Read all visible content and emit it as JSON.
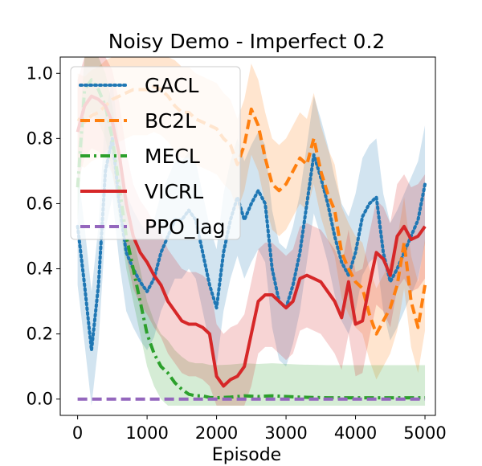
{
  "chart_data": {
    "type": "line",
    "title": "Noisy Demo - Imperfect 0.2",
    "xlabel": "Episode",
    "ylabel": "",
    "xlim": [
      -250,
      5150
    ],
    "ylim": [
      -0.05,
      1.05
    ],
    "x_ticks": [
      0,
      1000,
      2000,
      3000,
      4000,
      5000
    ],
    "x_tick_labels": [
      "0",
      "1000",
      "2000",
      "3000",
      "4000",
      "5000"
    ],
    "y_ticks": [
      0.0,
      0.2,
      0.4,
      0.6,
      0.8,
      1.0
    ],
    "y_tick_labels": [
      "0.0",
      "0.2",
      "0.4",
      "0.6",
      "0.8",
      "1.0"
    ],
    "legend_position": "top-left",
    "series": [
      {
        "name": "GACL",
        "color": "#1f77b4",
        "style": "dotted",
        "x": [
          0,
          100,
          200,
          300,
          400,
          500,
          600,
          700,
          800,
          900,
          1000,
          1100,
          1200,
          1300,
          1400,
          1500,
          1600,
          1700,
          1800,
          1900,
          2000,
          2100,
          2200,
          2300,
          2400,
          2500,
          2600,
          2700,
          2800,
          2900,
          3000,
          3100,
          3200,
          3300,
          3400,
          3500,
          3600,
          3700,
          3800,
          3900,
          4000,
          4100,
          4200,
          4300,
          4400,
          4500,
          4600,
          4700,
          4800,
          4900,
          5000
        ],
        "y": [
          0.53,
          0.35,
          0.15,
          0.35,
          0.7,
          0.8,
          0.6,
          0.45,
          0.4,
          0.36,
          0.33,
          0.37,
          0.45,
          0.5,
          0.55,
          0.55,
          0.58,
          0.55,
          0.45,
          0.35,
          0.28,
          0.45,
          0.55,
          0.62,
          0.55,
          0.6,
          0.64,
          0.6,
          0.4,
          0.3,
          0.28,
          0.35,
          0.45,
          0.6,
          0.75,
          0.68,
          0.6,
          0.5,
          0.42,
          0.38,
          0.45,
          0.56,
          0.6,
          0.62,
          0.45,
          0.36,
          0.4,
          0.45,
          0.5,
          0.55,
          0.66
        ]
      },
      {
        "name": "BC2L",
        "color": "#ff7f0e",
        "style": "dashed",
        "x": [
          0,
          100,
          200,
          300,
          400,
          500,
          600,
          700,
          800,
          900,
          1000,
          1100,
          1200,
          1300,
          1400,
          1500,
          1600,
          1700,
          1800,
          1900,
          2000,
          2100,
          2200,
          2300,
          2400,
          2500,
          2600,
          2700,
          2800,
          2900,
          3000,
          3100,
          3200,
          3300,
          3400,
          3500,
          3600,
          3700,
          3800,
          3900,
          4000,
          4100,
          4200,
          4300,
          4400,
          4500,
          4600,
          4700,
          4800,
          4900,
          5000
        ],
        "y": [
          0.86,
          0.85,
          0.87,
          0.88,
          0.9,
          0.92,
          0.93,
          0.94,
          0.95,
          0.95,
          0.95,
          0.96,
          0.95,
          0.93,
          0.9,
          0.88,
          0.88,
          0.86,
          0.85,
          0.84,
          0.83,
          0.8,
          0.78,
          0.72,
          0.78,
          0.89,
          0.84,
          0.74,
          0.66,
          0.64,
          0.66,
          0.7,
          0.74,
          0.72,
          0.8,
          0.7,
          0.63,
          0.58,
          0.45,
          0.4,
          0.36,
          0.34,
          0.26,
          0.2,
          0.24,
          0.28,
          0.35,
          0.48,
          0.3,
          0.22,
          0.35
        ]
      },
      {
        "name": "MECL",
        "color": "#2ca02c",
        "style": "dashdot",
        "x": [
          0,
          100,
          200,
          300,
          400,
          500,
          600,
          700,
          800,
          900,
          1000,
          1100,
          1200,
          1300,
          1400,
          1500,
          1600,
          1700,
          1800,
          1900,
          2000,
          2200,
          2400,
          2600,
          2800,
          3000,
          3200,
          3400,
          3600,
          3800,
          4000,
          4200,
          4400,
          4600,
          4800,
          5000
        ],
        "y": [
          0.65,
          0.95,
          0.98,
          0.95,
          0.9,
          0.8,
          0.65,
          0.5,
          0.4,
          0.3,
          0.2,
          0.14,
          0.1,
          0.08,
          0.05,
          0.03,
          0.015,
          0.01,
          0.01,
          0.005,
          0.004,
          0.006,
          0.01,
          0.008,
          0.01,
          0.008,
          0.006,
          0.005,
          0.004,
          0.004,
          0.004,
          0.004,
          0.004,
          0.004,
          0.004,
          0.004
        ]
      },
      {
        "name": "VICRL",
        "color": "#d62728",
        "style": "solid",
        "x": [
          0,
          100,
          200,
          300,
          400,
          500,
          600,
          700,
          800,
          900,
          1000,
          1100,
          1200,
          1300,
          1400,
          1500,
          1600,
          1700,
          1800,
          1900,
          2000,
          2100,
          2200,
          2300,
          2400,
          2500,
          2600,
          2700,
          2800,
          2900,
          3000,
          3100,
          3200,
          3300,
          3400,
          3500,
          3600,
          3700,
          3800,
          3900,
          4000,
          4100,
          4200,
          4300,
          4400,
          4500,
          4600,
          4700,
          4800,
          4900,
          5000
        ],
        "y": [
          0.82,
          0.9,
          0.93,
          0.92,
          0.9,
          0.85,
          0.75,
          0.6,
          0.5,
          0.45,
          0.42,
          0.38,
          0.35,
          0.3,
          0.27,
          0.24,
          0.23,
          0.23,
          0.22,
          0.2,
          0.07,
          0.04,
          0.06,
          0.07,
          0.1,
          0.2,
          0.3,
          0.32,
          0.32,
          0.3,
          0.28,
          0.3,
          0.37,
          0.38,
          0.37,
          0.36,
          0.33,
          0.3,
          0.25,
          0.36,
          0.23,
          0.24,
          0.35,
          0.45,
          0.43,
          0.38,
          0.5,
          0.53,
          0.49,
          0.5,
          0.53
        ]
      },
      {
        "name": "PPO_lag",
        "color": "#9467bd",
        "style": "dashed",
        "x": [
          0,
          5000
        ],
        "y": [
          0.0,
          0.0
        ]
      }
    ]
  }
}
